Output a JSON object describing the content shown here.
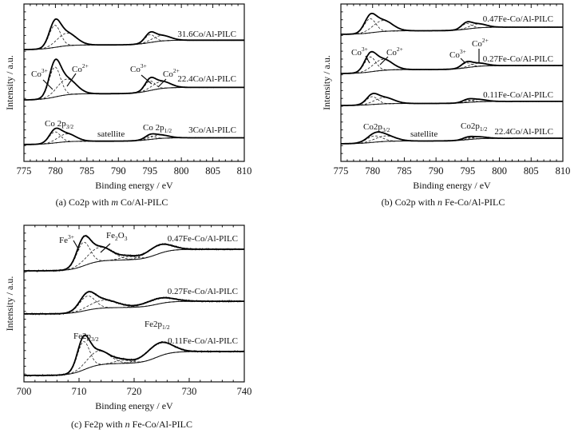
{
  "chart_data": [
    {
      "id": "a",
      "type": "line",
      "title": "(a) Co2p with m Co/Al-PILC",
      "caption": {
        "pre": "(a) Co2p with ",
        "italic": "m",
        "post": " Co/Al-PILC"
      },
      "xlabel": "Binding energy / eV",
      "ylabel": "Intensity / a.u.",
      "xlim": [
        775,
        810
      ],
      "ylim": [
        0,
        10
      ],
      "xticks": [
        775,
        780,
        785,
        790,
        795,
        800,
        805,
        810
      ],
      "series": [
        {
          "name": "31.6Co/Al-PILC",
          "background": {
            "left": 7.1,
            "right": 7.7,
            "steps": [
              780,
              795
            ]
          },
          "peaks": [
            {
              "center": 779.9,
              "height": 1.4,
              "sigma": 0.9
            },
            {
              "center": 781.8,
              "height": 0.8,
              "sigma": 1.5
            },
            {
              "center": 795.0,
              "height": 0.5,
              "sigma": 0.8
            },
            {
              "center": 796.8,
              "height": 0.35,
              "sigma": 1.4
            }
          ]
        },
        {
          "name": "22.4Co/Al-PILC",
          "background": {
            "left": 3.9,
            "right": 4.7,
            "steps": [
              780,
              795
            ]
          },
          "peaks": [
            {
              "center": 779.9,
              "height": 1.9,
              "sigma": 0.9
            },
            {
              "center": 781.8,
              "height": 1.0,
              "sigma": 1.5
            },
            {
              "center": 795.0,
              "height": 0.6,
              "sigma": 0.8
            },
            {
              "center": 796.8,
              "height": 0.45,
              "sigma": 1.4
            }
          ]
        },
        {
          "name": "3Co/Al-PILC",
          "background": {
            "left": 1.07,
            "right": 1.5,
            "steps": [
              780,
              795
            ]
          },
          "peaks": [
            {
              "center": 779.9,
              "height": 0.7,
              "sigma": 0.9
            },
            {
              "center": 781.8,
              "height": 0.5,
              "sigma": 1.4
            },
            {
              "center": 795.0,
              "height": 0.2,
              "sigma": 0.8
            },
            {
              "center": 796.5,
              "height": 0.22,
              "sigma": 1.4
            }
          ]
        }
      ],
      "annotations": {
        "p32": {
          "base": "Co 2p",
          "sub": "3/2"
        },
        "satellite": "satellite",
        "p12": {
          "base": "Co 2p",
          "sub": "1/2"
        },
        "co3_a": {
          "base": "Co",
          "sup": "3+"
        },
        "co2_a": {
          "base": "Co",
          "sup": "2+"
        },
        "co3_b": {
          "base": "Co",
          "sup": "3+"
        },
        "co2_b": {
          "base": "Co",
          "sup": "2+"
        }
      }
    },
    {
      "id": "b",
      "type": "line",
      "title": "(b) Co2p with n Fe-Co/Al-PILC",
      "caption": {
        "pre": "(b) Co2p with ",
        "italic": "n",
        "post": " Fe-Co/Al-PILC"
      },
      "xlabel": "Binding energy / eV",
      "ylabel": "Intensity / a.u.",
      "xlim": [
        775,
        810
      ],
      "ylim": [
        0,
        10
      ],
      "xticks": [
        775,
        780,
        785,
        790,
        795,
        800,
        805,
        810
      ],
      "series": [
        {
          "name": "0.47Fe-Co/Al-PILC",
          "background": {
            "left": 8.07,
            "right": 8.53,
            "steps": [
              780,
              795
            ]
          },
          "peaks": [
            {
              "center": 779.6,
              "height": 0.9,
              "sigma": 0.9
            },
            {
              "center": 781.6,
              "height": 0.7,
              "sigma": 1.5
            },
            {
              "center": 794.8,
              "height": 0.35,
              "sigma": 0.8
            },
            {
              "center": 796.6,
              "height": 0.25,
              "sigma": 1.3
            }
          ]
        },
        {
          "name": "0.27Fe-Co/Al-PILC",
          "background": {
            "left": 5.58,
            "right": 6.09,
            "steps": [
              780,
              795
            ]
          },
          "peaks": [
            {
              "center": 779.6,
              "height": 0.95,
              "sigma": 0.9
            },
            {
              "center": 781.6,
              "height": 0.7,
              "sigma": 1.5
            },
            {
              "center": 794.8,
              "height": 0.3,
              "sigma": 0.8
            },
            {
              "center": 796.6,
              "height": 0.2,
              "sigma": 1.3
            }
          ]
        },
        {
          "name": "0.11Fe-Co/Al-PILC",
          "background": {
            "left": 3.55,
            "right": 3.81,
            "steps": [
              780,
              795
            ]
          },
          "peaks": [
            {
              "center": 779.9,
              "height": 0.5,
              "sigma": 0.9
            },
            {
              "center": 781.8,
              "height": 0.4,
              "sigma": 1.5
            },
            {
              "center": 795.0,
              "height": 0.15,
              "sigma": 0.8
            },
            {
              "center": 796.6,
              "height": 0.15,
              "sigma": 1.3
            }
          ]
        },
        {
          "name": "22.4Co/Al-PILC",
          "background": {
            "left": 1.12,
            "right": 1.47,
            "steps": [
              780,
              795
            ]
          },
          "peaks": [
            {
              "center": 780.3,
              "height": 0.4,
              "sigma": 1.2
            },
            {
              "center": 782.0,
              "height": 0.35,
              "sigma": 1.6
            },
            {
              "center": 795.0,
              "height": 0.12,
              "sigma": 0.8
            },
            {
              "center": 796.6,
              "height": 0.12,
              "sigma": 1.3
            }
          ]
        }
      ],
      "annotations": {
        "p32": {
          "base": "Co2p",
          "sub": "3/2"
        },
        "satellite": "satellite",
        "p12": {
          "base": "Co2p",
          "sub": "1/2"
        },
        "co3_a": {
          "base": "Co",
          "sup": "3+"
        },
        "co2_a": {
          "base": "Co",
          "sup": "2+"
        },
        "co3_b": {
          "base": "Co",
          "sup": "3+"
        },
        "co2_b": {
          "base": "Co",
          "sup": "2+"
        }
      }
    },
    {
      "id": "c",
      "type": "line",
      "title": "(c) Fe2p with n Fe-Co/Al-PILC",
      "caption": {
        "pre": "(c) Fe2p with ",
        "italic": "n",
        "post": " Fe-Co/Al-PILC"
      },
      "xlabel": "Binding energy / eV",
      "ylabel": "Intensity / a.u.",
      "xlim": [
        700,
        740
      ],
      "ylim": [
        0,
        10
      ],
      "xticks": [
        700,
        710,
        720,
        730,
        740
      ],
      "series": [
        {
          "name": "0.47Fe-Co/Al-PILC",
          "background": {
            "left": 7.09,
            "right": 8.47,
            "steps": [
              711,
              724
            ]
          },
          "peaks": [
            {
              "center": 710.8,
              "height": 1.5,
              "sigma": 1.2
            },
            {
              "center": 713.8,
              "height": 0.9,
              "sigma": 2.2
            },
            {
              "center": 719.0,
              "height": 0.2,
              "sigma": 1.5
            },
            {
              "center": 724.5,
              "height": 0.55,
              "sigma": 2.2
            }
          ]
        },
        {
          "name": "0.27Fe-Co/Al-PILC",
          "background": {
            "left": 4.34,
            "right": 5.15,
            "steps": [
              711,
              724
            ]
          },
          "peaks": [
            {
              "center": 711.5,
              "height": 0.9,
              "sigma": 1.4
            },
            {
              "center": 714.5,
              "height": 0.5,
              "sigma": 2.5
            },
            {
              "center": 724.5,
              "height": 0.35,
              "sigma": 2.5
            }
          ]
        },
        {
          "name": "0.11Fe-Co/Al-PILC",
          "background": {
            "left": 0.41,
            "right": 1.94,
            "steps": [
              711,
              724
            ]
          },
          "peaks": [
            {
              "center": 710.8,
              "height": 1.8,
              "sigma": 1.1
            },
            {
              "center": 713.5,
              "height": 0.9,
              "sigma": 2.0
            },
            {
              "center": 718.0,
              "height": 0.2,
              "sigma": 1.5
            },
            {
              "center": 724.5,
              "height": 0.85,
              "sigma": 2.3
            }
          ]
        }
      ],
      "annotations": {
        "fe3": {
          "base": "Fe",
          "sup": "3+"
        },
        "fe2o3": {
          "base": "Fe",
          "sub": "2",
          "base2": "O",
          "sub2": "3"
        },
        "p32": {
          "base": "Fe2p",
          "sub": "3/2"
        },
        "p12": {
          "base": "Fe2p",
          "sub": "1/2"
        }
      }
    }
  ]
}
